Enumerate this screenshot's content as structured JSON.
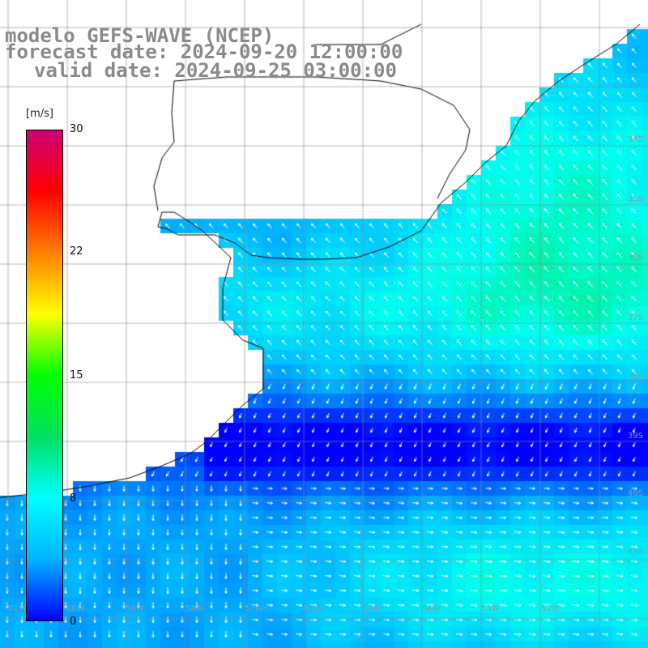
{
  "header": {
    "model": "modelo GEFS-WAVE (NCEP)",
    "forecast": "forecast date: 2024-09-20 12:00:00",
    "valid": "valid date: 2024-09-25 03:00:00"
  },
  "colorbar": {
    "unit": "[m/s]",
    "ticks": [
      "30",
      "22",
      "15",
      "8",
      "0"
    ],
    "min": 0,
    "max": 30,
    "colors": [
      "#0000ff",
      "#00b4ff",
      "#00ffff",
      "#00e060",
      "#00ff00",
      "#ffff00",
      "#ff8000",
      "#ff0000",
      "#cc0077"
    ]
  },
  "map": {
    "lat_labels": [
      "34S",
      "35S",
      "36S",
      "37S",
      "38S",
      "39S",
      "40S",
      "41S"
    ],
    "lon_labels": [
      "61W",
      "60W",
      "59W",
      "58W",
      "57W",
      "56W",
      "55W",
      "54W",
      "53W",
      "52W"
    ],
    "land_color": "#ffffff",
    "grid_color": "#888888",
    "coast_color": "#000000",
    "arrow_color": "#ffffff"
  }
}
